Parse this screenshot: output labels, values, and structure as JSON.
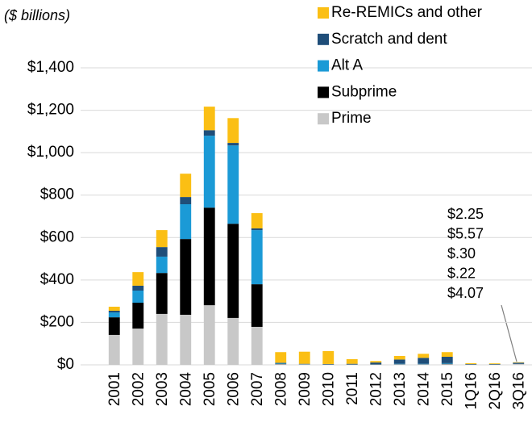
{
  "chart_data": {
    "type": "stacked_bar",
    "y_label": "($ billions)",
    "categories": [
      "2001",
      "2002",
      "2003",
      "2004",
      "2005",
      "2006",
      "2007",
      "2008",
      "2009",
      "2010",
      "2011",
      "2012",
      "2013",
      "2014",
      "2015",
      "1Q16",
      "2Q16",
      "3Q16"
    ],
    "series": [
      {
        "name": "Prime",
        "color": "#c8c8c8",
        "values": [
          141,
          171,
          240,
          236,
          281,
          221,
          179,
          3,
          2,
          1,
          1,
          1,
          2,
          2,
          3,
          1,
          1,
          4.07
        ],
        "value_labels": [
          null,
          null,
          null,
          null,
          null,
          null,
          null,
          null,
          null,
          null,
          null,
          null,
          null,
          null,
          null,
          null,
          null,
          "$4.07"
        ]
      },
      {
        "name": "Subprime",
        "color": "#000000",
        "values": [
          83,
          122,
          193,
          357,
          460,
          444,
          201,
          2,
          1,
          1,
          1,
          1,
          1,
          1,
          2,
          1,
          1,
          0.22
        ],
        "value_labels": [
          null,
          null,
          null,
          null,
          null,
          null,
          null,
          null,
          null,
          null,
          null,
          null,
          null,
          null,
          null,
          null,
          null,
          "$.22"
        ]
      },
      {
        "name": "Alt A",
        "color": "#1b9ad6",
        "values": [
          23,
          57,
          77,
          164,
          339,
          369,
          255,
          3,
          1,
          1,
          1,
          1,
          2,
          2,
          3,
          1,
          1,
          0.3
        ],
        "value_labels": [
          null,
          null,
          null,
          null,
          null,
          null,
          null,
          null,
          null,
          null,
          null,
          null,
          null,
          null,
          null,
          null,
          null,
          "$.30"
        ]
      },
      {
        "name": "Scratch and dent",
        "color": "#1f4e79",
        "values": [
          8,
          23,
          45,
          34,
          26,
          12,
          8,
          2,
          1,
          1,
          2,
          8,
          20,
          28,
          30,
          1,
          1,
          5.57
        ],
        "value_labels": [
          null,
          null,
          null,
          null,
          null,
          null,
          null,
          null,
          null,
          null,
          null,
          null,
          null,
          null,
          null,
          null,
          null,
          "$5.57"
        ]
      },
      {
        "name": "Re-REMICs and other",
        "color": "#fbbf14",
        "values": [
          19,
          64,
          80,
          110,
          111,
          117,
          72,
          50,
          57,
          61,
          22,
          7,
          17,
          19,
          22,
          4,
          3,
          2.25
        ],
        "value_labels": [
          null,
          null,
          null,
          null,
          null,
          null,
          null,
          null,
          null,
          null,
          null,
          null,
          null,
          null,
          null,
          null,
          null,
          "$2.25"
        ]
      }
    ],
    "ylim": [
      0,
      1400
    ],
    "yticks": [
      {
        "value": 0,
        "label": "$0"
      },
      {
        "value": 200,
        "label": "$200"
      },
      {
        "value": 400,
        "label": "$400"
      },
      {
        "value": 600,
        "label": "$600"
      },
      {
        "value": 800,
        "label": "$800"
      },
      {
        "value": 1000,
        "label": "$1,000"
      },
      {
        "value": 1200,
        "label": "$1,200"
      },
      {
        "value": 1400,
        "label": "$1,400"
      }
    ],
    "grid": true
  }
}
